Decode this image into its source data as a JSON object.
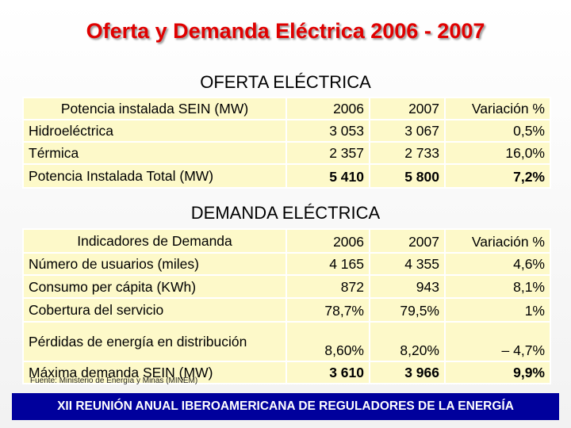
{
  "title": "Oferta y Demanda Eléctrica 2006 - 2007",
  "oferta": {
    "heading": "OFERTA ELÉCTRICA",
    "header": [
      "Potencia instalada SEIN (MW)",
      "2006",
      "2007",
      "Variación %"
    ],
    "rows": [
      [
        "Hidroeléctrica",
        "3 053",
        "3 067",
        "0,5%"
      ],
      [
        "Térmica",
        "2 357",
        "2 733",
        "16,0%"
      ],
      [
        "Potencia Instalada Total (MW)",
        "5 410",
        "5 800",
        "7,2%"
      ]
    ]
  },
  "demanda": {
    "heading": "DEMANDA ELÉCTRICA",
    "header": [
      "Indicadores de Demanda",
      "2006",
      "2007",
      "Variación %"
    ],
    "rows": [
      [
        "Número de usuarios (miles)",
        "4 165",
        "4 355",
        "4,6%"
      ],
      [
        "Consumo per cápita (KWh)",
        "872",
        "943",
        "8,1%"
      ],
      [
        "Cobertura del servicio",
        "78,7%",
        "79,5%",
        "1%"
      ],
      [
        "Pérdidas de energía en distribución",
        "8,60%",
        "8,20%",
        "– 4,7%"
      ],
      [
        "Máxima demanda SEIN (MW)",
        "3 610",
        "3 966",
        "9,9%"
      ]
    ]
  },
  "source": "Fuente: Ministerio de Energía y Minas (MINEM)",
  "footer": "XII REUNIÓN ANUAL IBEROAMERICANA DE REGULADORES DE LA ENERGÍA"
}
